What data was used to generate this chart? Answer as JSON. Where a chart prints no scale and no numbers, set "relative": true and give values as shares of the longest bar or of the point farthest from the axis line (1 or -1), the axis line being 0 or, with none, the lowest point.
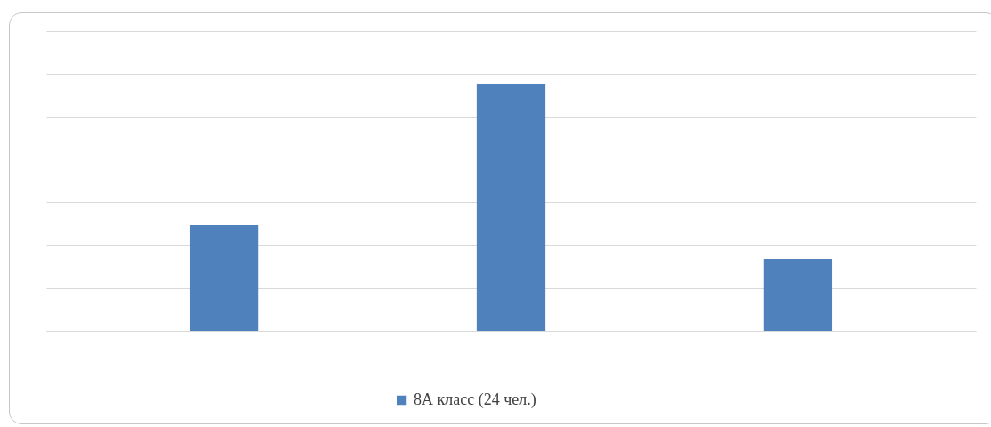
{
  "chart_data": {
    "type": "bar",
    "relative": true,
    "categories": [
      null,
      null,
      null
    ],
    "grid": "y",
    "legend": "bottom",
    "series": [
      {
        "name": "8А класс (24 чел.)",
        "color": "#4f81bd",
        "values": [
          0.43,
          1,
          0.29
        ]
      }
    ]
  }
}
